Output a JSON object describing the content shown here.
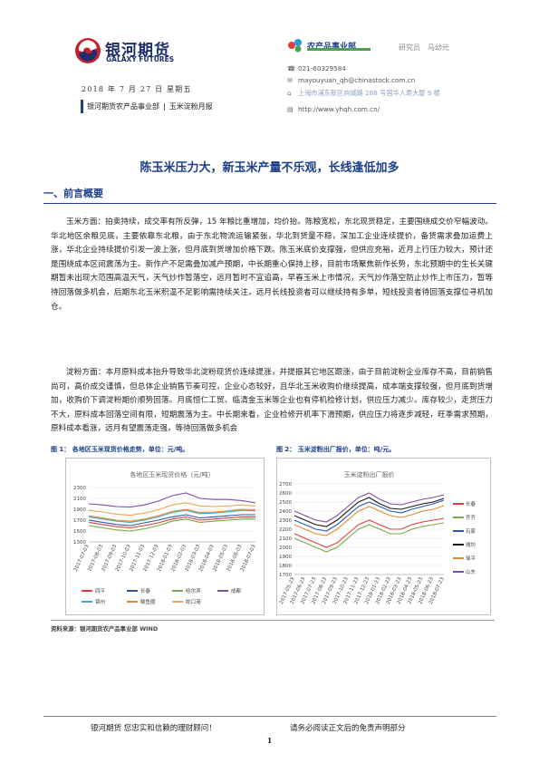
{
  "header": {
    "company_cn": "银河期货",
    "company_en": "GALAXY FUTURES",
    "date": "2018 年 7 月 27 日 星期五",
    "breadcrumb": [
      "银河期货农产品事业部",
      "玉米淀粉月报"
    ],
    "dept_name": "农产品事业部",
    "researcher": "研究员　马幼元",
    "phone": "021-60329584",
    "email": "mayouyuan_qh@chinastock.com.cn",
    "address": "上海市浦东新区向城路 288 号国华人寿大厦 9 楼",
    "website": "http://www.yhqh.com.cn/"
  },
  "title": "陈玉米压力大，新玉米产量不乐观，长线逢低加多",
  "section1": {
    "heading": "一、前言概要",
    "para1": "玉米方面：拍卖持续，成交率有所反弹，15 年粮比重增加，均价抬。陈粮宽松，东北现货稳定，主要围绕成交价窄幅波动。华北地区余粮见底，主要依靠东北粮，由于东北物流运输紧张，华北到货量不稳，深加工企业连续提价，备货需求叠加运费上涨，华北企业持续提价引发一波上涨，但月底到货增加价格下跌。陈玉米底价支撑强，但供应充裕，近月上行压力较大，预计还是围绕成本区间震荡为主。新作产不足需叠加减产预期，中长期重心保持上移，目前市场聚焦新作长势，东北预期中的生长关键期暂未出现大范围高温天气，天气炒作暂落空，远月暂时不宜追高，早春玉米上市情况，天气炒作落空防止炒作上市压力，暂等待回落做多机会，后期东北玉米积温不足影响需持续关注，远月长线投资者可以继续持有多单，短线投资者待回落支撑位寻机加仓。",
    "para2": "淀粉方面：本月原料成本抬升导致华北淀粉现货价连续提涨，并提振其它地区跟涨，由于目前淀粉企业库存不高，目前销售尚可，高价成交谨慎，但总体企业销售节奏可控，企业心态较好，且华北玉米收购价继续提高，成本端支撑较强，但月底到货增加，收购价下调淀粉期价顺势回落。月底恒仁工贸、临清金玉米等企业也有停机检修计划，供应压力减少。库存较少，走货压力不大，原料成本回落空间有限，短期震荡为主。中长期来看，企业检修开机率下滑预期，供应压力将逐步减轻，旺季需求预期，原料成本看涨，远月有望震荡走强，等待回落做多机会"
  },
  "figures": {
    "fig1_caption": "图 1：  各地区玉米现货价格走势，单位：元/吨。",
    "fig2_caption": "图 2：  玉米淀粉出厂报价，单位：吨/元。",
    "source": "资料来源：银河期货农产品事业部  WIND"
  },
  "chart_data": [
    {
      "type": "line",
      "title": "各地区玉米现货价格（元/吨）",
      "ylim": [
        1300,
        2300
      ],
      "yticks": [
        1300,
        1500,
        1700,
        1900,
        2100,
        2300
      ],
      "categories": [
        "2017-07-03",
        "2017-08-03",
        "2017-09-03",
        "2017-10-03",
        "2017-11-03",
        "2017-12-03",
        "2018-01-03",
        "2018-02-03",
        "2018-03-03",
        "2018-04-03",
        "2018-05-03",
        "2018-06-03",
        "2018-07-03"
      ],
      "legend": "bottom",
      "series": [
        {
          "name": "四平",
          "color": "#e0403a",
          "values": [
            1660,
            1620,
            1580,
            1560,
            1600,
            1650,
            1720,
            1760,
            1700,
            1720,
            1740,
            1760,
            1760
          ]
        },
        {
          "name": "长春",
          "color": "#2b56b0",
          "values": [
            1700,
            1660,
            1620,
            1600,
            1650,
            1700,
            1760,
            1800,
            1740,
            1760,
            1780,
            1800,
            1800
          ]
        },
        {
          "name": "哈尔滨",
          "color": "#7aa84a",
          "values": [
            1600,
            1560,
            1520,
            1500,
            1540,
            1600,
            1680,
            1720,
            1660,
            1680,
            1700,
            1720,
            1720
          ]
        },
        {
          "name": "成都",
          "color": "#7d4fa3",
          "values": [
            2000,
            1980,
            1950,
            1940,
            1980,
            2050,
            2150,
            2200,
            2100,
            2080,
            2080,
            2060,
            2020
          ]
        },
        {
          "name": "锦州",
          "color": "#3fa8c2",
          "values": [
            1760,
            1720,
            1680,
            1660,
            1700,
            1760,
            1840,
            1880,
            1820,
            1830,
            1850,
            1880,
            1870
          ]
        },
        {
          "name": "鲅鱼圈",
          "color": "#e6892e",
          "values": [
            1780,
            1740,
            1700,
            1680,
            1720,
            1780,
            1860,
            1900,
            1840,
            1850,
            1870,
            1900,
            1890
          ]
        },
        {
          "name": "蛇口港",
          "color": "#f0a25a",
          "values": [
            1880,
            1850,
            1810,
            1790,
            1830,
            1890,
            1980,
            2020,
            1960,
            1950,
            1960,
            1980,
            1960
          ]
        }
      ]
    },
    {
      "type": "line",
      "title": "玉米淀粉出厂报价",
      "ylim": [
        1700,
        2700
      ],
      "yticks": [
        1700,
        1800,
        1900,
        2000,
        2100,
        2200,
        2300,
        2400,
        2500,
        2600,
        2700
      ],
      "categories": [
        "2017-05-23",
        "2017-06-23",
        "2017-07-23",
        "2017-08-23",
        "2017-09-23",
        "2017-10-23",
        "2017-11-23",
        "2017-12-23",
        "2018-01-23",
        "2018-02-23",
        "2018-03-23",
        "2018-04-23",
        "2018-05-23",
        "2018-06-23",
        "2018-07-23"
      ],
      "legend": "right",
      "series": [
        {
          "name": "长春",
          "color": "#e0403a",
          "values": [
            2150,
            2100,
            2050,
            2000,
            2050,
            2150,
            2250,
            2300,
            2250,
            2200,
            2200,
            2250,
            2280,
            2300,
            2320
          ]
        },
        {
          "name": "齐齐",
          "color": "#7aa84a",
          "values": [
            2100,
            2050,
            2000,
            1950,
            2000,
            2100,
            2200,
            2250,
            2200,
            2150,
            2150,
            2200,
            2230,
            2250,
            2270
          ]
        },
        {
          "name": "石家",
          "color": "#2b56b0",
          "values": [
            2300,
            2250,
            2200,
            2180,
            2250,
            2350,
            2450,
            2500,
            2450,
            2400,
            2380,
            2420,
            2450,
            2480,
            2520
          ]
        },
        {
          "name": "潍坊",
          "color": "#1a1a1a",
          "values": [
            2350,
            2300,
            2250,
            2230,
            2300,
            2400,
            2500,
            2550,
            2480,
            2430,
            2420,
            2450,
            2480,
            2500,
            2540
          ]
        },
        {
          "name": "邹平",
          "color": "#e6892e",
          "values": [
            2250,
            2200,
            2150,
            2130,
            2200,
            2300,
            2400,
            2450,
            2400,
            2350,
            2330,
            2360,
            2400,
            2420,
            2460
          ]
        },
        {
          "name": "山东",
          "color": "#7d4fa3",
          "values": [
            2400,
            2350,
            2300,
            2280,
            2350,
            2450,
            2550,
            2600,
            2530,
            2480,
            2470,
            2500,
            2530,
            2550,
            2580
          ]
        }
      ]
    }
  ],
  "footer": {
    "left": "银河期货  您忠实和信赖的理财顾问！",
    "right": "请务必阅读正文后的免责声明部分",
    "page": "1"
  }
}
